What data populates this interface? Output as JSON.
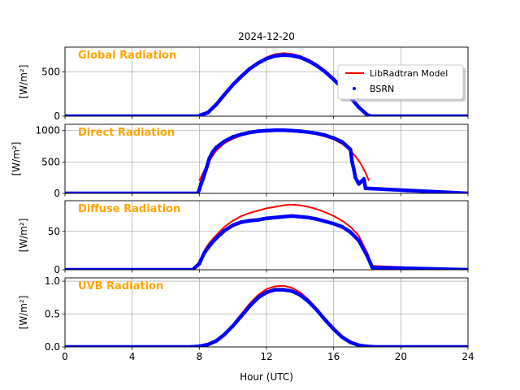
{
  "figure": {
    "title": "2024-12-20",
    "xlabel": "Hour (UTC)",
    "legend": {
      "placement": "upper-right of first panel",
      "model_label": "LibRadtran Model",
      "obs_label": "BSRN"
    },
    "colors": {
      "model": "#ff0000",
      "obs": "#0000ff",
      "panel_label": "#ffa500",
      "grid": "#b0b0b0"
    }
  },
  "chart_data": [
    {
      "type": "line",
      "title": "Global Radiation",
      "ylabel": "[W/m²]",
      "xlim": [
        0,
        24
      ],
      "ylim": [
        0,
        780
      ],
      "yticks": [
        0,
        500
      ],
      "xticks": [
        0,
        4,
        8,
        12,
        16,
        20,
        24
      ],
      "grid": true,
      "series": [
        {
          "name": "LibRadtran Model",
          "style": "line",
          "x": [
            0,
            8.0,
            8.5,
            9,
            9.5,
            10,
            10.5,
            11,
            11.5,
            12,
            12.5,
            13,
            13.5,
            14,
            14.5,
            15,
            15.5,
            16,
            16.5,
            17,
            17.5,
            18,
            18.2,
            24
          ],
          "y": [
            0,
            0,
            45,
            140,
            250,
            360,
            455,
            540,
            610,
            665,
            700,
            712,
            705,
            680,
            640,
            585,
            515,
            430,
            330,
            220,
            110,
            20,
            0,
            0
          ]
        },
        {
          "name": "BSRN",
          "style": "points",
          "x": [
            0,
            7.9,
            8.5,
            9,
            9.5,
            10,
            10.5,
            11,
            11.5,
            12,
            12.5,
            13,
            13.5,
            14,
            14.5,
            15,
            15.5,
            16,
            16.5,
            17,
            17.5,
            18,
            18.2,
            24
          ],
          "y": [
            0,
            0,
            40,
            130,
            245,
            355,
            450,
            535,
            600,
            650,
            680,
            690,
            685,
            665,
            625,
            570,
            500,
            415,
            320,
            210,
            100,
            15,
            0,
            0
          ]
        }
      ]
    },
    {
      "type": "line",
      "title": "Direct Radiation",
      "ylabel": "[W/m²]",
      "xlim": [
        0,
        24
      ],
      "ylim": [
        0,
        1100
      ],
      "yticks": [
        0,
        500,
        1000
      ],
      "xticks": [
        0,
        4,
        8,
        12,
        16,
        20,
        24
      ],
      "grid": true,
      "series": [
        {
          "name": "LibRadtran Model",
          "style": "line",
          "x": [
            8.0,
            8.2,
            8.4,
            8.6,
            8.8,
            9,
            9.5,
            10,
            10.5,
            11,
            11.5,
            12,
            12.5,
            13,
            13.5,
            14,
            14.5,
            15,
            15.5,
            16,
            16.5,
            17,
            17.3,
            17.6,
            17.9,
            18.1
          ],
          "y": [
            200,
            310,
            420,
            520,
            600,
            680,
            800,
            870,
            920,
            955,
            980,
            995,
            1000,
            1000,
            995,
            985,
            965,
            940,
            905,
            860,
            790,
            680,
            590,
            480,
            330,
            200
          ]
        },
        {
          "name": "BSRN",
          "style": "points",
          "x": [
            0,
            7.9,
            8.0,
            8.1,
            8.2,
            8.3,
            8.4,
            8.5,
            8.6,
            8.7,
            8.8,
            9,
            9.5,
            10,
            10.5,
            11,
            11.5,
            12,
            12.5,
            13,
            13.5,
            14,
            14.5,
            15,
            15.5,
            16,
            16.5,
            17.0,
            17.1,
            17.2,
            17.3,
            17.5,
            17.8,
            17.9,
            24
          ],
          "y": [
            0,
            0,
            60,
            150,
            220,
            300,
            380,
            470,
            560,
            610,
            660,
            730,
            830,
            900,
            940,
            970,
            990,
            1000,
            1005,
            1005,
            1000,
            990,
            975,
            955,
            925,
            880,
            820,
            700,
            500,
            380,
            250,
            150,
            230,
            80,
            0
          ]
        }
      ]
    },
    {
      "type": "line",
      "title": "Diffuse Radiation",
      "ylabel": "[W/m²]",
      "xlim": [
        0,
        24
      ],
      "ylim": [
        0,
        90
      ],
      "yticks": [
        0,
        50
      ],
      "xticks": [
        0,
        4,
        8,
        12,
        16,
        20,
        24
      ],
      "grid": true,
      "series": [
        {
          "name": "LibRadtran Model",
          "style": "line",
          "x": [
            0,
            7.7,
            8.0,
            8.3,
            8.6,
            9,
            9.5,
            10,
            10.5,
            11,
            11.5,
            12,
            12.5,
            13,
            13.5,
            14,
            14.5,
            15,
            15.5,
            16,
            16.5,
            17,
            17.5,
            18,
            18.3,
            24
          ],
          "y": [
            0,
            0,
            10,
            25,
            35,
            45,
            56,
            64,
            70,
            74,
            77,
            80,
            82,
            84,
            85,
            84,
            82,
            79,
            75,
            70,
            64,
            56,
            44,
            22,
            5,
            0
          ]
        },
        {
          "name": "BSRN",
          "style": "points",
          "x": [
            0,
            7.6,
            8.0,
            8.3,
            8.6,
            9,
            9.5,
            10,
            10.5,
            11,
            11.5,
            12,
            12.5,
            13,
            13.5,
            14,
            14.5,
            15,
            15.5,
            16,
            16.5,
            17,
            17.5,
            18,
            18.3,
            24
          ],
          "y": [
            0,
            0,
            8,
            22,
            31,
            41,
            51,
            58,
            62,
            64,
            65,
            67,
            68,
            69,
            70,
            69,
            68,
            66,
            63,
            60,
            56,
            49,
            38,
            18,
            3,
            0
          ]
        }
      ]
    },
    {
      "type": "line",
      "title": "UVB Radiation",
      "ylabel": "[W/m²]",
      "xlim": [
        0,
        24
      ],
      "ylim": [
        0,
        1.05
      ],
      "yticks": [
        0.0,
        0.5,
        1.0
      ],
      "xticks": [
        0,
        4,
        8,
        12,
        16,
        20,
        24
      ],
      "grid": true,
      "series": [
        {
          "name": "LibRadtran Model",
          "style": "line",
          "x": [
            0,
            7.5,
            8,
            8.5,
            9,
            9.5,
            10,
            10.5,
            11,
            11.5,
            12,
            12.5,
            13,
            13.5,
            14,
            14.5,
            15,
            15.5,
            16,
            16.5,
            17,
            17.5,
            18,
            18.5,
            24
          ],
          "y": [
            0,
            0,
            0.01,
            0.04,
            0.1,
            0.2,
            0.34,
            0.5,
            0.66,
            0.79,
            0.88,
            0.92,
            0.93,
            0.9,
            0.83,
            0.72,
            0.58,
            0.42,
            0.27,
            0.15,
            0.07,
            0.025,
            0.008,
            0.0,
            0
          ]
        },
        {
          "name": "BSRN",
          "style": "points",
          "x": [
            0,
            7.5,
            8,
            8.5,
            9,
            9.5,
            10,
            10.5,
            11,
            11.5,
            12,
            12.5,
            13,
            13.5,
            14,
            14.5,
            15,
            15.5,
            16,
            16.5,
            17,
            17.5,
            18,
            18.5,
            24
          ],
          "y": [
            0,
            0,
            0.01,
            0.035,
            0.09,
            0.19,
            0.32,
            0.47,
            0.62,
            0.75,
            0.83,
            0.87,
            0.87,
            0.85,
            0.79,
            0.69,
            0.56,
            0.41,
            0.27,
            0.15,
            0.07,
            0.025,
            0.008,
            0.0,
            0
          ]
        }
      ]
    }
  ]
}
